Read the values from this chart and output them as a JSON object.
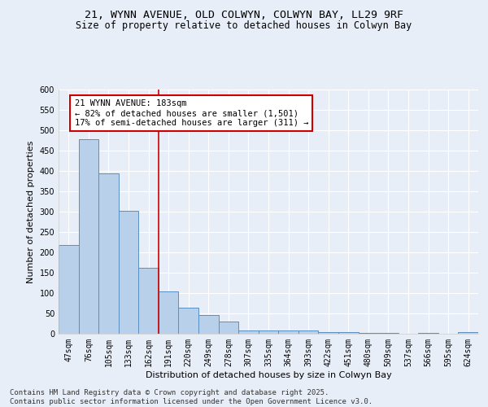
{
  "title_line1": "21, WYNN AVENUE, OLD COLWYN, COLWYN BAY, LL29 9RF",
  "title_line2": "Size of property relative to detached houses in Colwyn Bay",
  "xlabel": "Distribution of detached houses by size in Colwyn Bay",
  "ylabel": "Number of detached properties",
  "categories": [
    "47sqm",
    "76sqm",
    "105sqm",
    "133sqm",
    "162sqm",
    "191sqm",
    "220sqm",
    "249sqm",
    "278sqm",
    "307sqm",
    "335sqm",
    "364sqm",
    "393sqm",
    "422sqm",
    "451sqm",
    "480sqm",
    "509sqm",
    "537sqm",
    "566sqm",
    "595sqm",
    "624sqm"
  ],
  "values": [
    219,
    479,
    395,
    302,
    163,
    105,
    65,
    47,
    31,
    9,
    9,
    9,
    8,
    5,
    5,
    2,
    2,
    1,
    2,
    1,
    4
  ],
  "bar_color": "#b8d0ea",
  "bar_edge_color": "#5a8fc2",
  "annotation_text": "21 WYNN AVENUE: 183sqm\n← 82% of detached houses are smaller (1,501)\n17% of semi-detached houses are larger (311) →",
  "annotation_box_color": "#ffffff",
  "annotation_box_edge": "#cc0000",
  "vline_color": "#cc0000",
  "ylim": [
    0,
    600
  ],
  "yticks": [
    0,
    50,
    100,
    150,
    200,
    250,
    300,
    350,
    400,
    450,
    500,
    550,
    600
  ],
  "footer_line1": "Contains HM Land Registry data © Crown copyright and database right 2025.",
  "footer_line2": "Contains public sector information licensed under the Open Government Licence v3.0.",
  "background_color": "#e8eef8",
  "grid_color": "#ffffff",
  "title_fontsize": 9.5,
  "subtitle_fontsize": 8.5,
  "axis_label_fontsize": 8,
  "tick_fontsize": 7,
  "annotation_fontsize": 7.5,
  "footer_fontsize": 6.5
}
